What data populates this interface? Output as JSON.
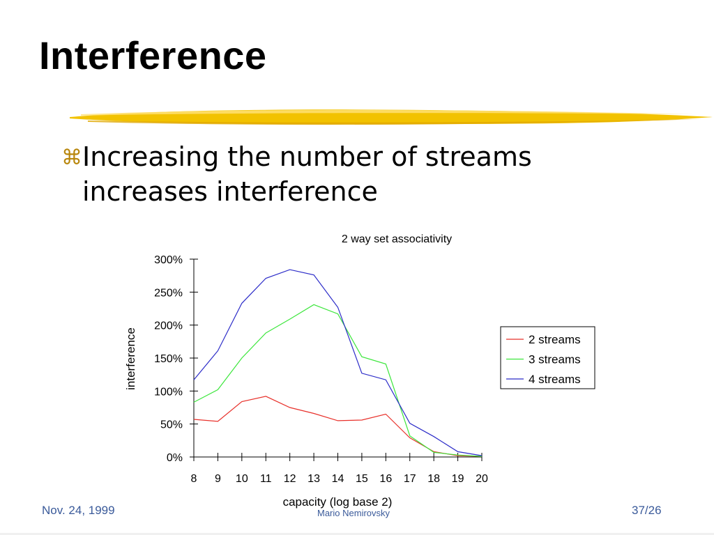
{
  "slide": {
    "title": "Interference",
    "bullet_icon": "command-key-icon",
    "bullet_lines": [
      "Increasing the number of streams",
      "increases interference"
    ],
    "accent_color": "#f2c200"
  },
  "chart_data": {
    "type": "line",
    "title": "2 way set associativity",
    "xlabel": "capacity (log base 2)",
    "ylabel": "interference",
    "x": [
      8,
      9,
      10,
      11,
      12,
      13,
      14,
      15,
      16,
      17,
      18,
      19,
      20
    ],
    "ylim": [
      0,
      300
    ],
    "yticks": [
      "0%",
      "50%",
      "100%",
      "150%",
      "200%",
      "250%",
      "300%"
    ],
    "grid": false,
    "legend_position": "right",
    "series": [
      {
        "name": "2 streams",
        "color": "#e8302a",
        "values": [
          57,
          54,
          84,
          92,
          75,
          66,
          55,
          56,
          65,
          29,
          8,
          2,
          1
        ]
      },
      {
        "name": "3 streams",
        "color": "#3ce63c",
        "values": [
          83,
          102,
          150,
          188,
          209,
          231,
          217,
          152,
          141,
          32,
          7,
          3,
          1
        ]
      },
      {
        "name": "4 streams",
        "color": "#2b2bc8",
        "values": [
          117,
          161,
          233,
          271,
          284,
          276,
          227,
          127,
          117,
          51,
          31,
          8,
          2
        ]
      }
    ]
  },
  "footer": {
    "date": "Nov. 24, 1999",
    "author": "Mario Nemirovsky",
    "page": "37/26"
  }
}
